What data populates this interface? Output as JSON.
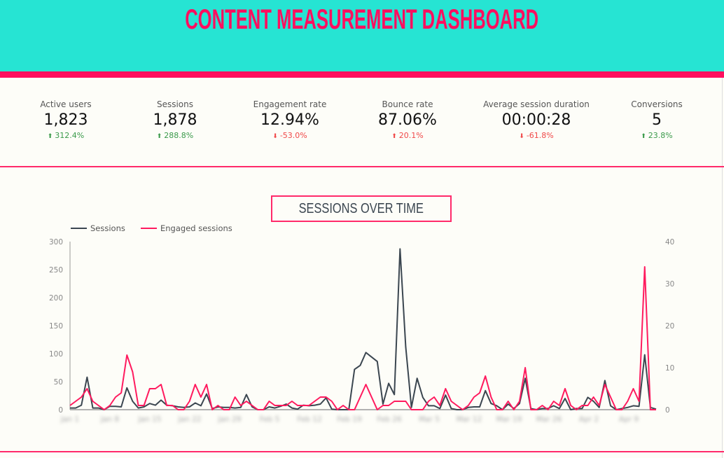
{
  "header": {
    "title": "CONTENT MEASUREMENT DASHBOARD"
  },
  "colors": {
    "header_bg": "#26e4d3",
    "accent": "#ff0f5f",
    "sessions_line": "#3b4650",
    "engaged_line": "#ff1a5e",
    "positive": "#3a9a4a",
    "negative": "#f04848"
  },
  "kpis": [
    {
      "label": "Active users",
      "value": "1,823",
      "delta": "312.4%",
      "direction": "up",
      "sentiment": "up"
    },
    {
      "label": "Sessions",
      "value": "1,878",
      "delta": "288.8%",
      "direction": "up",
      "sentiment": "up"
    },
    {
      "label": "Engagement rate",
      "value": "12.94%",
      "delta": "-53.0%",
      "direction": "down",
      "sentiment": "down"
    },
    {
      "label": "Bounce rate",
      "value": "87.06%",
      "delta": "20.1%",
      "direction": "up",
      "sentiment": "down"
    },
    {
      "label": "Average session duration",
      "value": "00:00:28",
      "delta": "-61.8%",
      "direction": "down",
      "sentiment": "down"
    },
    {
      "label": "Conversions",
      "value": "5",
      "delta": "23.8%",
      "direction": "up",
      "sentiment": "up"
    }
  ],
  "chart_data": {
    "type": "line",
    "title": "SESSIONS OVER TIME",
    "legend": [
      "Sessions",
      "Engaged sessions"
    ],
    "legend_position": "top-left",
    "y_left": {
      "ticks": [
        0,
        50,
        100,
        150,
        200,
        250,
        300
      ],
      "ylim": [
        0,
        300
      ]
    },
    "y_right": {
      "ticks": [
        0,
        10,
        20,
        30,
        40
      ],
      "ylim": [
        0,
        40
      ]
    },
    "x_tick_labels": [
      "Jan 1",
      "Jan 8",
      "Jan 15",
      "Jan 22",
      "Jan 29",
      "Feb 5",
      "Feb 12",
      "Feb 19",
      "Feb 26",
      "Mar 5",
      "Mar 12",
      "Mar 19",
      "Mar 26",
      "Apr 2",
      "Apr 9"
    ],
    "series": [
      {
        "name": "Sessions",
        "axis": "left",
        "values": [
          3,
          3,
          8,
          58,
          3,
          3,
          0,
          6,
          6,
          5,
          39,
          15,
          3,
          5,
          11,
          8,
          17,
          8,
          7,
          5,
          4,
          5,
          12,
          7,
          28,
          2,
          5,
          4,
          4,
          3,
          4,
          27,
          5,
          0,
          0,
          5,
          3,
          6,
          10,
          3,
          1,
          8,
          7,
          8,
          10,
          21,
          1,
          0,
          0,
          0,
          72,
          79,
          102,
          94,
          86,
          10,
          47,
          27,
          287,
          112,
          4,
          56,
          22,
          7,
          7,
          2,
          26,
          2,
          0,
          0,
          4,
          5,
          5,
          34,
          11,
          7,
          0,
          10,
          2,
          11,
          56,
          2,
          0,
          2,
          2,
          7,
          2,
          20,
          0,
          2,
          2,
          22,
          15,
          4,
          52,
          7,
          0,
          2,
          4,
          7,
          6,
          98,
          4,
          1
        ]
      },
      {
        "name": "Engaged sessions",
        "axis": "right",
        "values": [
          1,
          2,
          3,
          5,
          2,
          1,
          0,
          1,
          3,
          4,
          13,
          9,
          1,
          1,
          5,
          5,
          6,
          1,
          1,
          0,
          0,
          2,
          6,
          3,
          6,
          0,
          1,
          0,
          0,
          3,
          1,
          2,
          1,
          0,
          0,
          2,
          1,
          1,
          1,
          2,
          1,
          1,
          1,
          2,
          3,
          3,
          2,
          0,
          1,
          0,
          0,
          3,
          6,
          3,
          0,
          1,
          1,
          2,
          2,
          2,
          0,
          0,
          0,
          2,
          3,
          1,
          5,
          2,
          1,
          0,
          1,
          3,
          4,
          8,
          3,
          0,
          0,
          2,
          0,
          2,
          10,
          0,
          0,
          1,
          0,
          2,
          1,
          5,
          1,
          0,
          1,
          1,
          3,
          1,
          6,
          3,
          0,
          0,
          2,
          5,
          2,
          34,
          0,
          0
        ]
      }
    ]
  }
}
